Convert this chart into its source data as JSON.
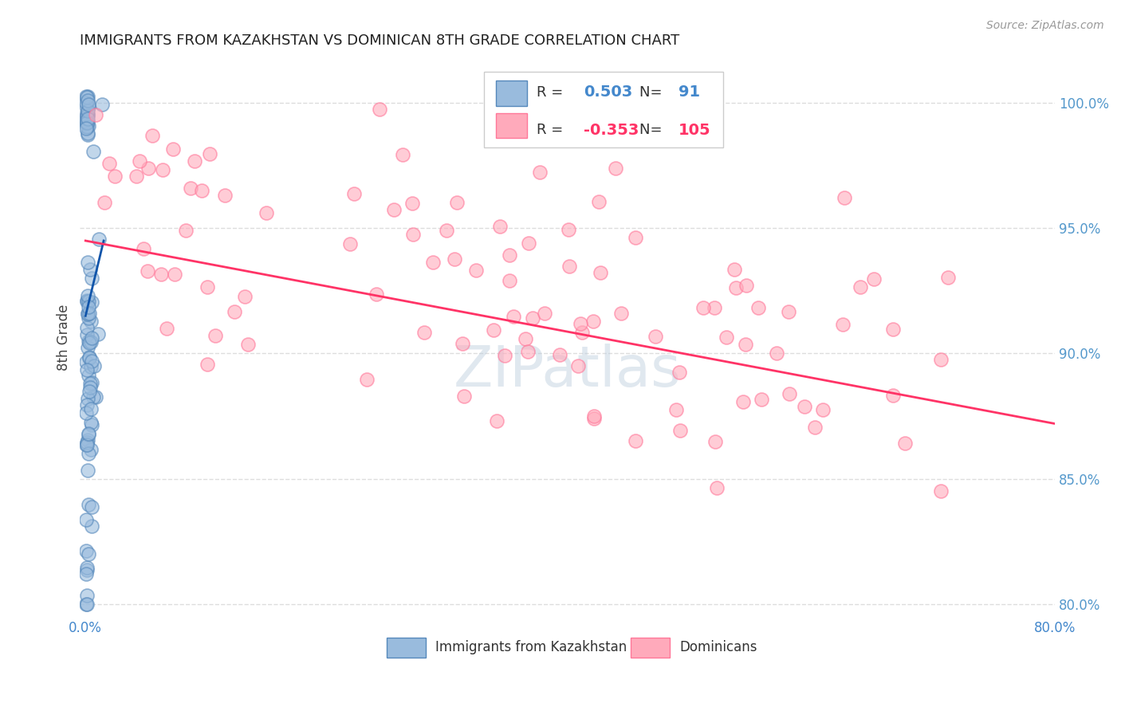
{
  "title": "IMMIGRANTS FROM KAZAKHSTAN VS DOMINICAN 8TH GRADE CORRELATION CHART",
  "source": "Source: ZipAtlas.com",
  "ylabel": "8th Grade",
  "x_tick_positions": [
    0,
    10,
    20,
    30,
    40,
    50,
    60,
    70,
    80
  ],
  "x_tick_labels": [
    "0.0%",
    "",
    "",
    "",
    "",
    "",
    "",
    "",
    "80.0%"
  ],
  "y_tick_positions": [
    80.0,
    85.0,
    90.0,
    95.0,
    100.0
  ],
  "y_tick_labels": [
    "80.0%",
    "85.0%",
    "90.0%",
    "95.0%",
    "100.0%"
  ],
  "xlim": [
    -0.5,
    80.0
  ],
  "ylim": [
    79.5,
    101.8
  ],
  "blue_fill_color": "#99BBDD",
  "blue_edge_color": "#5588BB",
  "pink_fill_color": "#FFAABB",
  "pink_edge_color": "#FF7799",
  "blue_line_color": "#1155AA",
  "pink_line_color": "#FF3366",
  "legend_R_blue": "0.503",
  "legend_N_blue": "91",
  "legend_R_pink": "-0.353",
  "legend_N_pink": "105",
  "watermark_text": "ZIPatlas",
  "watermark_color": "#BBCCDD",
  "background_color": "#ffffff",
  "grid_color": "#DDDDDD",
  "title_fontsize": 13,
  "tick_color": "#4488CC",
  "right_tick_color": "#5599CC",
  "figsize": [
    14.06,
    8.92
  ],
  "dpi": 100,
  "blue_trend_x": [
    0.0,
    1.5
  ],
  "blue_trend_y": [
    91.5,
    94.5
  ],
  "pink_trend_x": [
    0.0,
    80.0
  ],
  "pink_trend_y": [
    94.5,
    87.2
  ]
}
